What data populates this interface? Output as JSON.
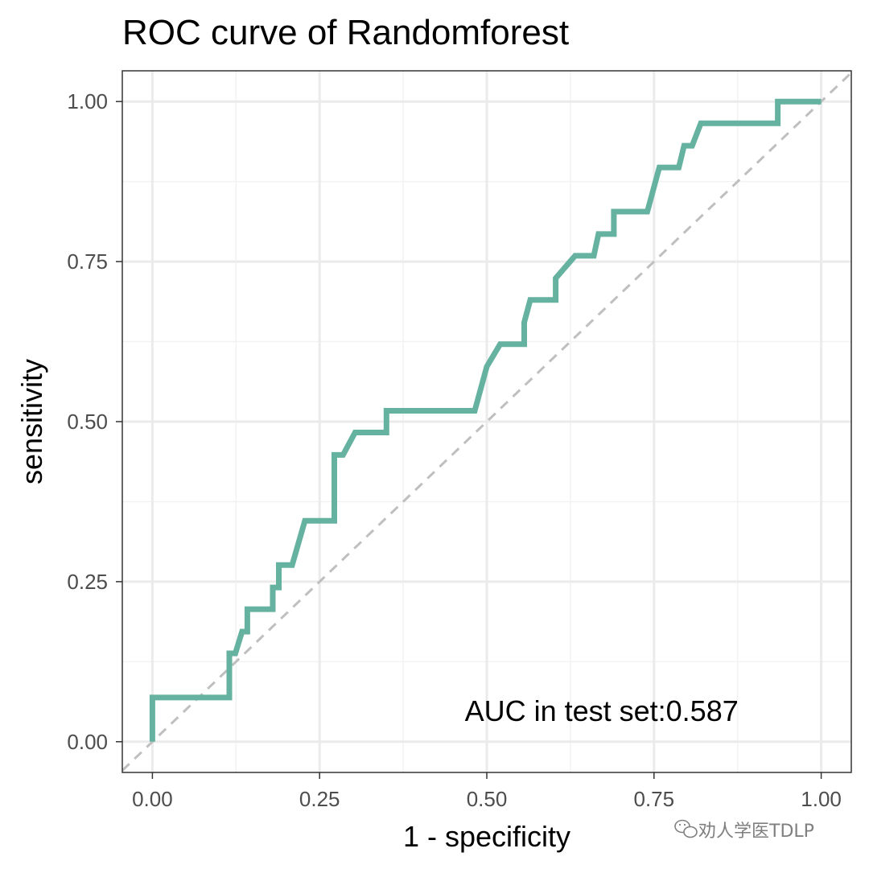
{
  "chart_data": {
    "type": "line",
    "title": "ROC curve of Randomforest",
    "xlabel": "1 - specificity",
    "ylabel": "sensitivity",
    "xlim": [
      -0.045,
      1.045
    ],
    "ylim": [
      -0.048,
      1.048
    ],
    "x_ticks": [
      0,
      0.25,
      0.5,
      0.75,
      1
    ],
    "x_tick_labels": [
      "0.00",
      "0.25",
      "0.50",
      "0.75",
      "1.00"
    ],
    "y_ticks": [
      0,
      0.25,
      0.5,
      0.75,
      1
    ],
    "y_tick_labels": [
      "0.00",
      "0.25",
      "0.50",
      "0.75",
      "1.00"
    ],
    "grid": true,
    "annotation": {
      "text": "AUC in test set:0.587",
      "x": 0.467,
      "y": 0.05
    },
    "series": [
      {
        "name": "ROC",
        "color": "#66b2a0",
        "x": [
          0,
          0,
          0.115,
          0.115,
          0.124,
          0.134,
          0.142,
          0.142,
          0.18,
          0.18,
          0.189,
          0.189,
          0.209,
          0.228,
          0.272,
          0.272,
          0.285,
          0.303,
          0.35,
          0.35,
          0.482,
          0.5,
          0.52,
          0.556,
          0.556,
          0.565,
          0.603,
          0.603,
          0.632,
          0.66,
          0.667,
          0.69,
          0.69,
          0.74,
          0.758,
          0.787,
          0.795,
          0.807,
          0.82,
          0.935,
          0.935,
          1.0
        ],
        "y": [
          0,
          0.069,
          0.069,
          0.138,
          0.138,
          0.172,
          0.172,
          0.207,
          0.207,
          0.241,
          0.241,
          0.276,
          0.276,
          0.345,
          0.345,
          0.448,
          0.448,
          0.483,
          0.483,
          0.517,
          0.517,
          0.586,
          0.621,
          0.621,
          0.655,
          0.69,
          0.69,
          0.724,
          0.759,
          0.759,
          0.793,
          0.793,
          0.828,
          0.828,
          0.897,
          0.897,
          0.931,
          0.931,
          0.966,
          0.966,
          1.0,
          1.0
        ]
      },
      {
        "name": "reference",
        "color": "#bfbfbf",
        "style": "dashed",
        "x": [
          -0.045,
          1.045
        ],
        "y": [
          -0.045,
          1.045
        ]
      }
    ]
  },
  "watermark": {
    "text": "劝人学医TDLP",
    "icon": "wechat-icon"
  }
}
